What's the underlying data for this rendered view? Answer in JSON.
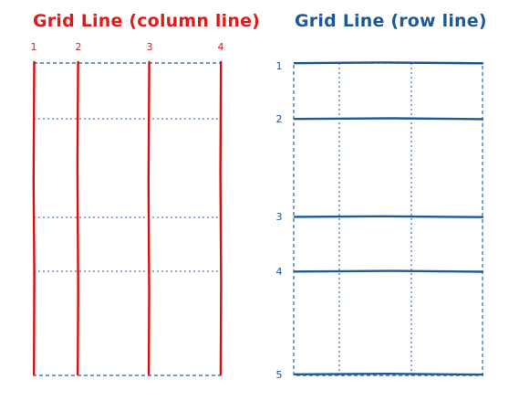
{
  "panels": {
    "column": {
      "title": "Grid Line (column line)",
      "color": "#e01b1b",
      "line_numbers": [
        "1",
        "2",
        "3",
        "4"
      ]
    },
    "row": {
      "title": "Grid Line (row line)",
      "color": "#1f5a96",
      "line_numbers": [
        "1",
        "2",
        "3",
        "4",
        "5"
      ]
    }
  },
  "grid_color": "#4a78b0"
}
